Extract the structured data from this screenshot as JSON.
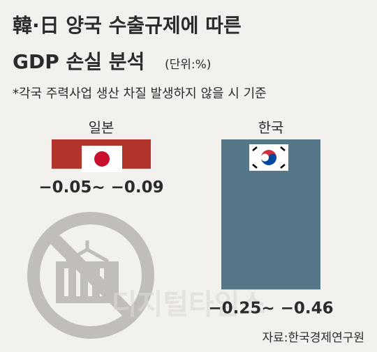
{
  "chart_data": {
    "type": "bar",
    "title": "韓·日 양국 수출규제에 따른",
    "title_line2": "GDP 손실 분석",
    "unit": "(단위:%)",
    "subtitle": "*각국 주력사업 생산 차질 발생하지 않을 시 기준",
    "categories": [
      "일본",
      "한국"
    ],
    "values": [
      -0.09,
      -0.46
    ],
    "value_labels": [
      "−0.05~ −0.09",
      "−0.25~ −0.46"
    ],
    "colors": [
      "#b3342b",
      "#557787"
    ],
    "ylim": [
      -0.5,
      0
    ],
    "source": "자료:한국경제연구원",
    "watermark": "디지털타임스"
  }
}
